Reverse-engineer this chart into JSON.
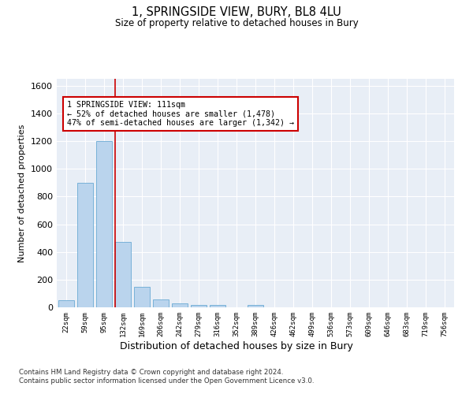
{
  "title": "1, SPRINGSIDE VIEW, BURY, BL8 4LU",
  "subtitle": "Size of property relative to detached houses in Bury",
  "xlabel": "Distribution of detached houses by size in Bury",
  "ylabel": "Number of detached properties",
  "footer": "Contains HM Land Registry data © Crown copyright and database right 2024.\nContains public sector information licensed under the Open Government Licence v3.0.",
  "categories": [
    "22sqm",
    "59sqm",
    "95sqm",
    "132sqm",
    "169sqm",
    "206sqm",
    "242sqm",
    "279sqm",
    "316sqm",
    "352sqm",
    "389sqm",
    "426sqm",
    "462sqm",
    "499sqm",
    "536sqm",
    "573sqm",
    "609sqm",
    "646sqm",
    "683sqm",
    "719sqm",
    "756sqm"
  ],
  "values": [
    50,
    900,
    1200,
    470,
    150,
    55,
    30,
    15,
    15,
    0,
    15,
    0,
    0,
    0,
    0,
    0,
    0,
    0,
    0,
    0,
    0
  ],
  "bar_color": "#bad4ed",
  "bar_edge_color": "#6aaad4",
  "background_color": "#e8eef6",
  "grid_color": "#ffffff",
  "vline_x": 2.58,
  "vline_color": "#cc0000",
  "annotation_line1": "1 SPRINGSIDE VIEW: 111sqm",
  "annotation_line2": "← 52% of detached houses are smaller (1,478)",
  "annotation_line3": "47% of semi-detached houses are larger (1,342) →",
  "annotation_box_color": "#cc0000",
  "ylim": [
    0,
    1650
  ],
  "yticks": [
    0,
    200,
    400,
    600,
    800,
    1000,
    1200,
    1400,
    1600
  ]
}
